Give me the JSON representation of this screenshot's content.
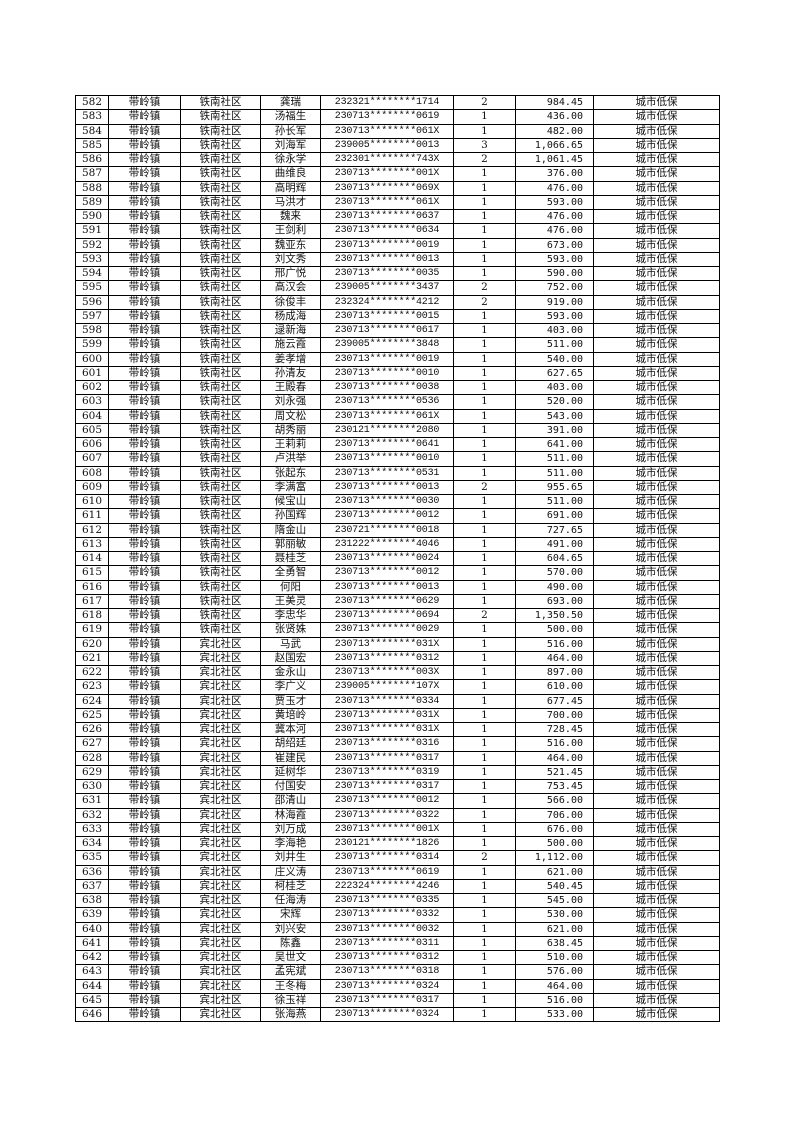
{
  "default_town": "带岭镇",
  "default_type": "城市低保",
  "rows": [
    [
      "582",
      "带岭镇",
      "铁南社区",
      "龚瑞",
      "232321********1714",
      "2",
      "984.45",
      "城市低保"
    ],
    [
      "583",
      "带岭镇",
      "铁南社区",
      "汤福生",
      "230713********0619",
      "1",
      "436.00",
      "城市低保"
    ],
    [
      "584",
      "带岭镇",
      "铁南社区",
      "孙长军",
      "230713********061X",
      "1",
      "482.00",
      "城市低保"
    ],
    [
      "585",
      "带岭镇",
      "铁南社区",
      "刘海军",
      "239005********0013",
      "3",
      "1,066.65",
      "城市低保"
    ],
    [
      "586",
      "带岭镇",
      "铁南社区",
      "徐永学",
      "232301********743X",
      "2",
      "1,061.45",
      "城市低保"
    ],
    [
      "587",
      "带岭镇",
      "铁南社区",
      "曲维良",
      "230713********001X",
      "1",
      "376.00",
      "城市低保"
    ],
    [
      "588",
      "带岭镇",
      "铁南社区",
      "高明辉",
      "230713********069X",
      "1",
      "476.00",
      "城市低保"
    ],
    [
      "589",
      "带岭镇",
      "铁南社区",
      "马洪才",
      "230713********061X",
      "1",
      "593.00",
      "城市低保"
    ],
    [
      "590",
      "带岭镇",
      "铁南社区",
      "魏来",
      "230713********0637",
      "1",
      "476.00",
      "城市低保"
    ],
    [
      "591",
      "带岭镇",
      "铁南社区",
      "王剑利",
      "230713********0634",
      "1",
      "476.00",
      "城市低保"
    ],
    [
      "592",
      "带岭镇",
      "铁南社区",
      "魏亚东",
      "230713********0019",
      "1",
      "673.00",
      "城市低保"
    ],
    [
      "593",
      "带岭镇",
      "铁南社区",
      "刘文秀",
      "230713********0013",
      "1",
      "593.00",
      "城市低保"
    ],
    [
      "594",
      "带岭镇",
      "铁南社区",
      "邢广悦",
      "230713********0035",
      "1",
      "590.00",
      "城市低保"
    ],
    [
      "595",
      "带岭镇",
      "铁南社区",
      "高汉会",
      "239005********3437",
      "2",
      "752.00",
      "城市低保"
    ],
    [
      "596",
      "带岭镇",
      "铁南社区",
      "徐俊丰",
      "232324********4212",
      "2",
      "919.00",
      "城市低保"
    ],
    [
      "597",
      "带岭镇",
      "铁南社区",
      "杨成海",
      "230713********0015",
      "1",
      "593.00",
      "城市低保"
    ],
    [
      "598",
      "带岭镇",
      "铁南社区",
      "逯新海",
      "230713********0617",
      "1",
      "403.00",
      "城市低保"
    ],
    [
      "599",
      "带岭镇",
      "铁南社区",
      "施云霞",
      "239005********3848",
      "1",
      "511.00",
      "城市低保"
    ],
    [
      "600",
      "带岭镇",
      "铁南社区",
      "姜孝增",
      "230713********0019",
      "1",
      "540.00",
      "城市低保"
    ],
    [
      "601",
      "带岭镇",
      "铁南社区",
      "孙清友",
      "230713********0010",
      "1",
      "627.65",
      "城市低保"
    ],
    [
      "602",
      "带岭镇",
      "铁南社区",
      "王殿春",
      "230713********0038",
      "1",
      "403.00",
      "城市低保"
    ],
    [
      "603",
      "带岭镇",
      "铁南社区",
      "刘永强",
      "230713********0536",
      "1",
      "520.00",
      "城市低保"
    ],
    [
      "604",
      "带岭镇",
      "铁南社区",
      "周文松",
      "230713********061X",
      "1",
      "543.00",
      "城市低保"
    ],
    [
      "605",
      "带岭镇",
      "铁南社区",
      "胡秀丽",
      "230121********2080",
      "1",
      "391.00",
      "城市低保"
    ],
    [
      "606",
      "带岭镇",
      "铁南社区",
      "王莉莉",
      "230713********0641",
      "1",
      "641.00",
      "城市低保"
    ],
    [
      "607",
      "带岭镇",
      "铁南社区",
      "卢洪举",
      "230713********0010",
      "1",
      "511.00",
      "城市低保"
    ],
    [
      "608",
      "带岭镇",
      "铁南社区",
      "张起东",
      "230713********0531",
      "1",
      "511.00",
      "城市低保"
    ],
    [
      "609",
      "带岭镇",
      "铁南社区",
      "李满富",
      "230713********0013",
      "2",
      "955.65",
      "城市低保"
    ],
    [
      "610",
      "带岭镇",
      "铁南社区",
      "候宝山",
      "230713********0030",
      "1",
      "511.00",
      "城市低保"
    ],
    [
      "611",
      "带岭镇",
      "铁南社区",
      "孙国辉",
      "230713********0012",
      "1",
      "691.00",
      "城市低保"
    ],
    [
      "612",
      "带岭镇",
      "铁南社区",
      "隋金山",
      "230721********0018",
      "1",
      "727.65",
      "城市低保"
    ],
    [
      "613",
      "带岭镇",
      "铁南社区",
      "郭丽敏",
      "231222********4046",
      "1",
      "491.00",
      "城市低保"
    ],
    [
      "614",
      "带岭镇",
      "铁南社区",
      "聂桂芝",
      "230713********0024",
      "1",
      "604.65",
      "城市低保"
    ],
    [
      "615",
      "带岭镇",
      "铁南社区",
      "全勇智",
      "230713********0012",
      "1",
      "570.00",
      "城市低保"
    ],
    [
      "616",
      "带岭镇",
      "铁南社区",
      "何阳",
      "230713********0013",
      "1",
      "490.00",
      "城市低保"
    ],
    [
      "617",
      "带岭镇",
      "铁南社区",
      "王美灵",
      "230713********0629",
      "1",
      "693.00",
      "城市低保"
    ],
    [
      "618",
      "带岭镇",
      "铁南社区",
      "李忠华",
      "230713********0694",
      "2",
      "1,350.50",
      "城市低保"
    ],
    [
      "619",
      "带岭镇",
      "铁南社区",
      "张贤姝",
      "230713********0029",
      "1",
      "500.00",
      "城市低保"
    ],
    [
      "620",
      "带岭镇",
      "宾北社区",
      "马武",
      "230713********031X",
      "1",
      "516.00",
      "城市低保"
    ],
    [
      "621",
      "带岭镇",
      "宾北社区",
      "赵国宏",
      "230713********0312",
      "1",
      "464.00",
      "城市低保"
    ],
    [
      "622",
      "带岭镇",
      "宾北社区",
      "金永山",
      "230713********003X",
      "1",
      "897.00",
      "城市低保"
    ],
    [
      "623",
      "带岭镇",
      "宾北社区",
      "李广义",
      "239005********107X",
      "1",
      "610.00",
      "城市低保"
    ],
    [
      "624",
      "带岭镇",
      "宾北社区",
      "贾玉才",
      "230713********0334",
      "1",
      "677.45",
      "城市低保"
    ],
    [
      "625",
      "带岭镇",
      "宾北社区",
      "黄培岭",
      "230713********031X",
      "1",
      "700.00",
      "城市低保"
    ],
    [
      "626",
      "带岭镇",
      "宾北社区",
      "冀本河",
      "230713********031X",
      "1",
      "728.45",
      "城市低保"
    ],
    [
      "627",
      "带岭镇",
      "宾北社区",
      "胡绍廷",
      "230713********0316",
      "1",
      "516.00",
      "城市低保"
    ],
    [
      "628",
      "带岭镇",
      "宾北社区",
      "崔建民",
      "230713********0317",
      "1",
      "464.00",
      "城市低保"
    ],
    [
      "629",
      "带岭镇",
      "宾北社区",
      "延树华",
      "230713********0319",
      "1",
      "521.45",
      "城市低保"
    ],
    [
      "630",
      "带岭镇",
      "宾北社区",
      "付国安",
      "230713********0317",
      "1",
      "753.45",
      "城市低保"
    ],
    [
      "631",
      "带岭镇",
      "宾北社区",
      "邵清山",
      "230713********0012",
      "1",
      "566.00",
      "城市低保"
    ],
    [
      "632",
      "带岭镇",
      "宾北社区",
      "林海霞",
      "230713********0322",
      "1",
      "706.00",
      "城市低保"
    ],
    [
      "633",
      "带岭镇",
      "宾北社区",
      "刘万成",
      "230713********001X",
      "1",
      "676.00",
      "城市低保"
    ],
    [
      "634",
      "带岭镇",
      "宾北社区",
      "李海艳",
      "230121********1826",
      "1",
      "500.00",
      "城市低保"
    ],
    [
      "635",
      "带岭镇",
      "宾北社区",
      "刘井生",
      "230713********0314",
      "2",
      "1,112.00",
      "城市低保"
    ],
    [
      "636",
      "带岭镇",
      "宾北社区",
      "庄义涛",
      "230713********0619",
      "1",
      "621.00",
      "城市低保"
    ],
    [
      "637",
      "带岭镇",
      "宾北社区",
      "柯桂芝",
      "222324********4246",
      "1",
      "540.45",
      "城市低保"
    ],
    [
      "638",
      "带岭镇",
      "宾北社区",
      "任海涛",
      "230713********0335",
      "1",
      "545.00",
      "城市低保"
    ],
    [
      "639",
      "带岭镇",
      "宾北社区",
      "宋辉",
      "230713********0332",
      "1",
      "530.00",
      "城市低保"
    ],
    [
      "640",
      "带岭镇",
      "宾北社区",
      "刘兴安",
      "230713********0032",
      "1",
      "621.00",
      "城市低保"
    ],
    [
      "641",
      "带岭镇",
      "宾北社区",
      "陈鑫",
      "230713********0311",
      "1",
      "638.45",
      "城市低保"
    ],
    [
      "642",
      "带岭镇",
      "宾北社区",
      "吴世文",
      "230713********0312",
      "1",
      "510.00",
      "城市低保"
    ],
    [
      "643",
      "带岭镇",
      "宾北社区",
      "孟宪斌",
      "230713********0318",
      "1",
      "576.00",
      "城市低保"
    ],
    [
      "644",
      "带岭镇",
      "宾北社区",
      "王冬梅",
      "230713********0324",
      "1",
      "464.00",
      "城市低保"
    ],
    [
      "645",
      "带岭镇",
      "宾北社区",
      "徐玉祥",
      "230713********0317",
      "1",
      "516.00",
      "城市低保"
    ],
    [
      "646",
      "带岭镇",
      "宾北社区",
      "张海燕",
      "230713********0324",
      "1",
      "533.00",
      "城市低保"
    ]
  ]
}
